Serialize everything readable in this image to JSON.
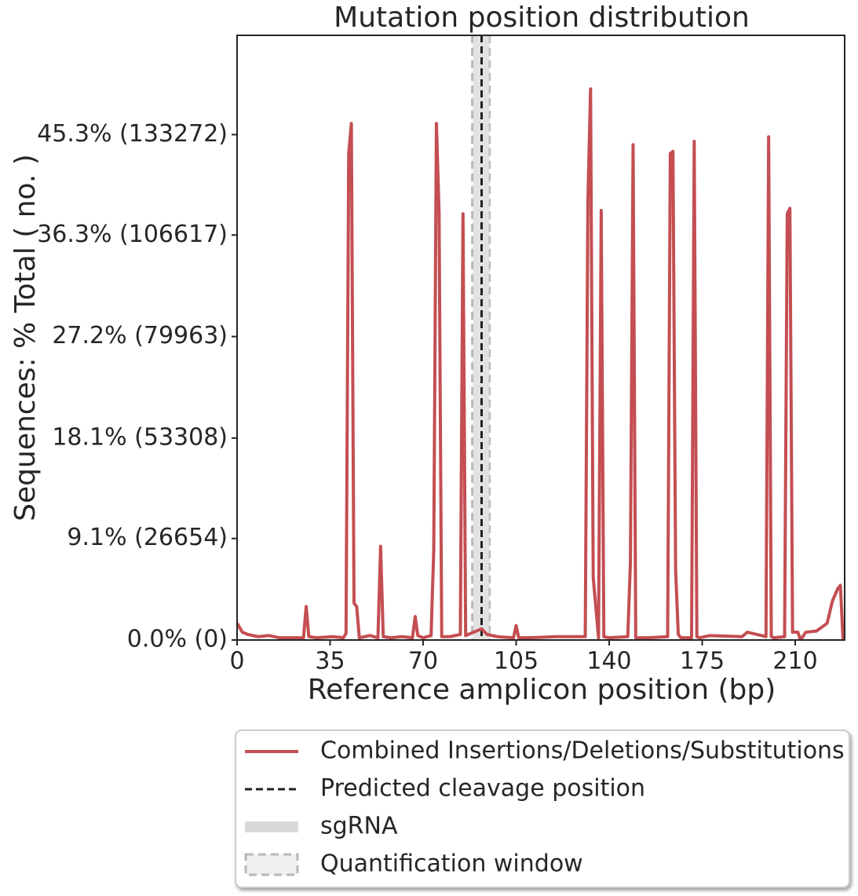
{
  "chart_data": {
    "type": "line",
    "title": "Mutation position distribution",
    "xlabel": "Reference amplicon position (bp)",
    "ylabel": "Sequences: % Total ( no. )",
    "x": [
      0,
      2,
      4,
      8,
      12,
      16,
      20,
      25,
      26,
      27,
      30,
      36,
      40,
      41,
      42,
      43,
      44,
      45,
      46,
      50,
      53,
      54,
      55,
      58,
      62,
      66,
      67,
      68,
      70,
      73,
      74,
      75,
      76,
      77,
      80,
      84,
      85,
      86,
      88,
      92,
      94,
      98,
      104,
      105,
      106,
      110,
      120,
      131,
      132,
      133,
      134,
      136,
      137,
      138,
      140,
      147,
      148,
      149,
      150,
      155,
      162,
      163,
      164,
      165,
      166,
      167,
      171,
      172,
      173,
      174,
      178,
      190,
      192,
      199,
      200,
      201,
      202,
      206,
      207,
      208,
      209,
      211,
      212,
      214,
      218,
      222,
      224,
      226,
      227,
      228
    ],
    "series": [
      {
        "name": "Combined Insertions/Deletions/Substitutions",
        "color": "#c44e52",
        "values": [
          1.5,
          0.7,
          0.5,
          0.3,
          0.4,
          0.2,
          0.2,
          0.2,
          3.0,
          0.3,
          0.2,
          0.3,
          0.2,
          0.6,
          43.6,
          46.3,
          3.3,
          3.0,
          0.2,
          0.4,
          0.2,
          8.4,
          0.3,
          0.2,
          0.3,
          0.2,
          2.1,
          0.4,
          0.2,
          0.4,
          8.1,
          46.3,
          38.3,
          0.3,
          0.3,
          0.5,
          38.2,
          0.4,
          0.6,
          1.0,
          0.5,
          0.3,
          0.2,
          1.3,
          0.2,
          0.2,
          0.3,
          0.3,
          39.4,
          49.4,
          5.6,
          0.2,
          38.5,
          0.3,
          0.2,
          0.3,
          7.0,
          44.4,
          0.2,
          0.2,
          0.3,
          43.6,
          43.8,
          6.3,
          0.5,
          0.2,
          0.2,
          44.7,
          0.3,
          0.2,
          0.4,
          0.3,
          0.7,
          0.3,
          45.1,
          0.3,
          0.2,
          0.3,
          38.2,
          38.7,
          0.7,
          0.7,
          0,
          0.7,
          0.8,
          1.5,
          3.5,
          4.6,
          4.9,
          0
        ]
      }
    ],
    "markers": [
      {
        "name": "Predicted cleavage position",
        "kind": "cleavage",
        "x": 92,
        "color": "#222222"
      },
      {
        "name": "sgRNA",
        "kind": "sgrna",
        "range": [
          89,
          95
        ],
        "color": "#d9d9d9"
      },
      {
        "name": "Quantification window",
        "kind": "window",
        "range": [
          88.5,
          95
        ],
        "color": "#b8b8b8"
      }
    ],
    "xlim": [
      0,
      228.6
    ],
    "ylim": [
      0,
      54.2
    ],
    "xticks": [
      0,
      35,
      70,
      105,
      140,
      175,
      210
    ],
    "yticks": [
      {
        "value": 0,
        "label": "0.0% (0)"
      },
      {
        "value": 9.1,
        "label": "9.1% (26654)"
      },
      {
        "value": 18.1,
        "label": "18.1% (53308)"
      },
      {
        "value": 27.2,
        "label": "27.2% (79963)"
      },
      {
        "value": 36.3,
        "label": "36.3% (106617)"
      },
      {
        "value": 45.3,
        "label": "45.3% (133272)"
      }
    ]
  }
}
